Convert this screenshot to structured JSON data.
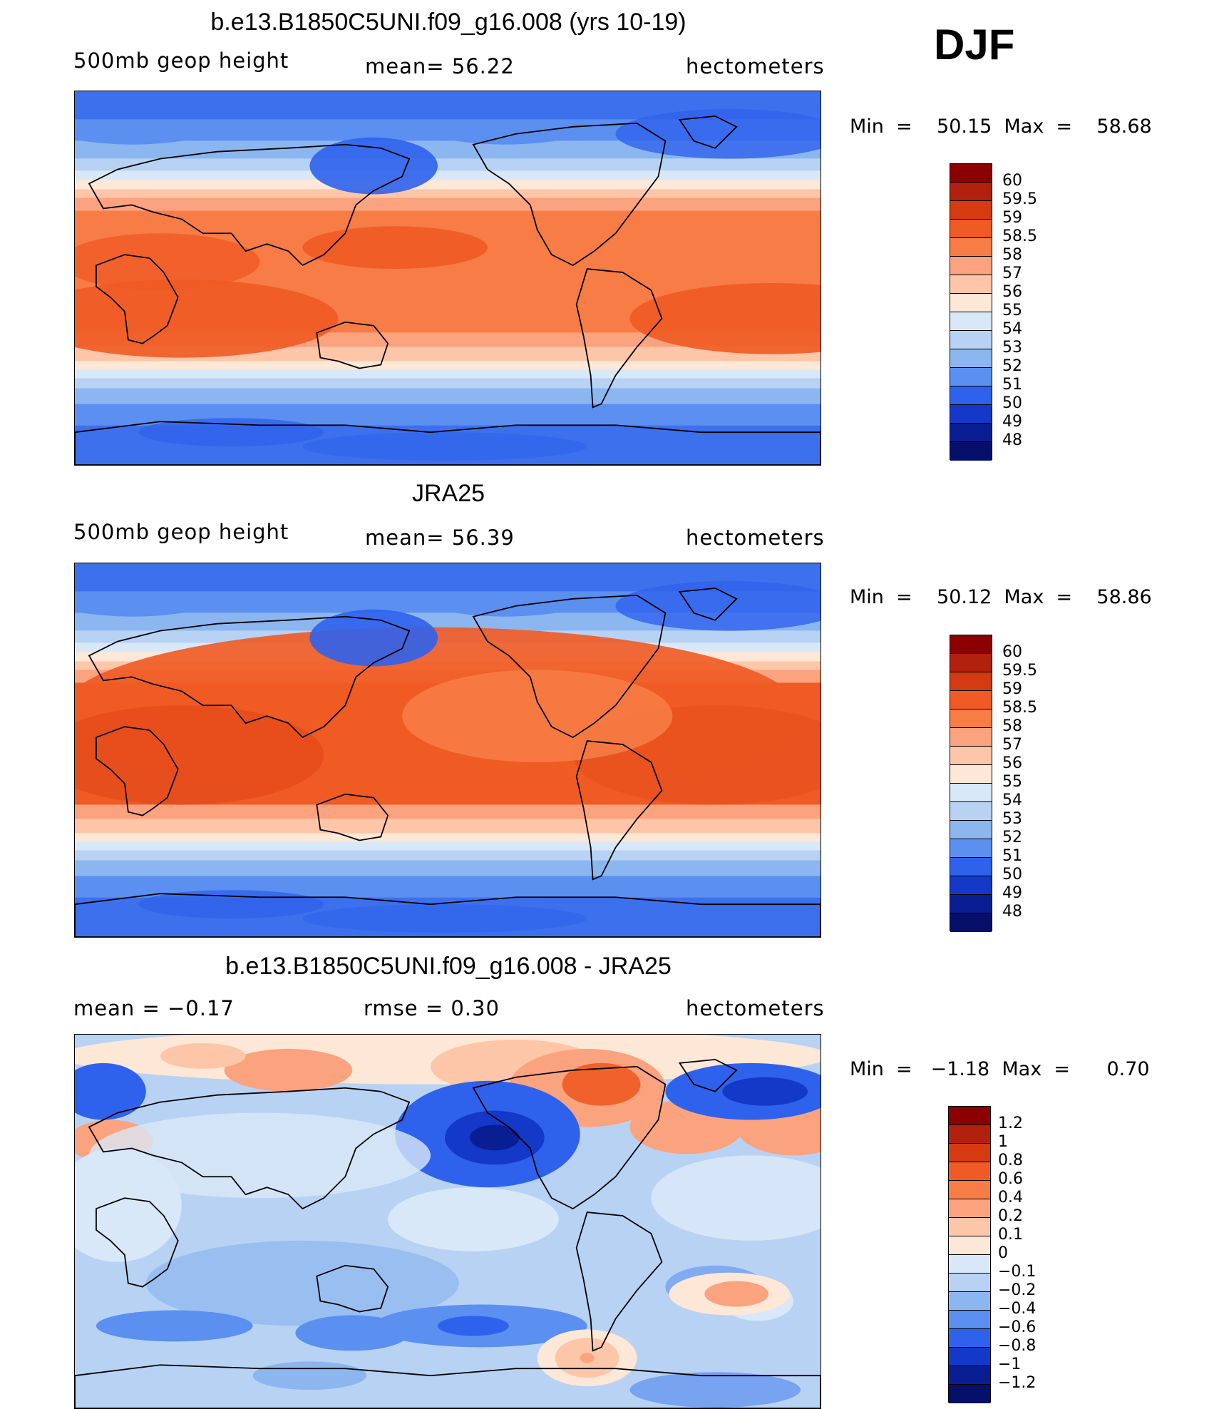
{
  "season": "DJF",
  "panels": [
    {
      "title": "b.e13.B1850C5UNI.f09_g16.008 (yrs 10-19)",
      "left_text": "500mb  geop  height",
      "mid_text": "mean=   56.22",
      "right_text": "hectometers",
      "minmax": "Min  =    50.15  Max  =    58.68",
      "colorbar": {
        "labels": [
          "60",
          "59.5",
          "59",
          "58.5",
          "58",
          "57",
          "56",
          "55",
          "54",
          "53",
          "52",
          "51",
          "50",
          "49",
          "48"
        ],
        "colors": [
          "#8b0000",
          "#b2200e",
          "#d63a10",
          "#f05a24",
          "#f77c45",
          "#fba27e",
          "#fdc6a8",
          "#fde7d6",
          "#d9e8f8",
          "#b8d2f4",
          "#8cb6f0",
          "#5b8ff0",
          "#2f62ec",
          "#1438c8",
          "#0a1e94",
          "#060f6a"
        ]
      },
      "field": "model"
    },
    {
      "title": "JRA25",
      "left_text": "500mb  geop  height",
      "mid_text": "mean=   56.39",
      "right_text": "hectometers",
      "minmax": "Min  =    50.12  Max  =    58.86",
      "colorbar": {
        "labels": [
          "60",
          "59.5",
          "59",
          "58.5",
          "58",
          "57",
          "56",
          "55",
          "54",
          "53",
          "52",
          "51",
          "50",
          "49",
          "48"
        ],
        "colors": [
          "#8b0000",
          "#b2200e",
          "#d63a10",
          "#f05a24",
          "#f77c45",
          "#fba27e",
          "#fdc6a8",
          "#fde7d6",
          "#d9e8f8",
          "#b8d2f4",
          "#8cb6f0",
          "#5b8ff0",
          "#2f62ec",
          "#1438c8",
          "#0a1e94",
          "#060f6a"
        ]
      },
      "field": "obs"
    },
    {
      "title": "b.e13.B1850C5UNI.f09_g16.008 - JRA25",
      "left_text": "mean  =    −0.17",
      "mid_text": "rmse  =     0.30",
      "right_text": "hectometers",
      "minmax": "Min  =   −1.18  Max  =      0.70",
      "colorbar": {
        "labels": [
          "1.2",
          "1",
          "0.8",
          "0.6",
          "0.4",
          "0.2",
          "0.1",
          "0",
          "−0.1",
          "−0.2",
          "−0.4",
          "−0.6",
          "−0.8",
          "−1",
          "−1.2"
        ],
        "colors": [
          "#8b0000",
          "#b2200e",
          "#d63a10",
          "#f05a24",
          "#f77c45",
          "#fba27e",
          "#fdc6a8",
          "#fde7d6",
          "#d9e8f8",
          "#b8d2f4",
          "#8cb6f0",
          "#5b8ff0",
          "#2f62ec",
          "#1438c8",
          "#0a1e94",
          "#060f6a"
        ]
      },
      "field": "diff"
    }
  ]
}
